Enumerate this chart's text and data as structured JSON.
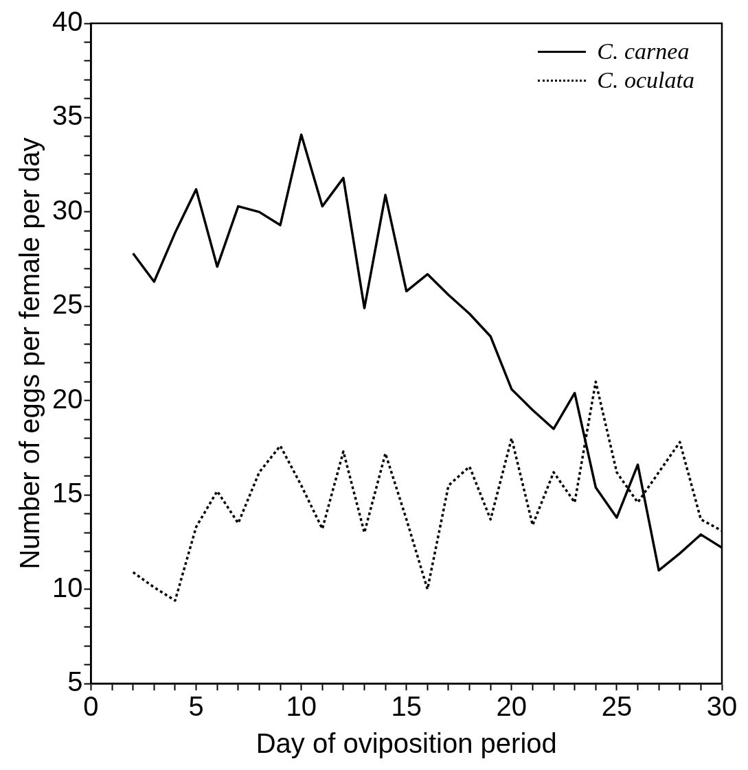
{
  "chart_data": {
    "type": "line",
    "xlabel": "Day of oviposition period",
    "ylabel": "Number of eggs per female per day",
    "x": [
      2,
      3,
      4,
      5,
      6,
      7,
      8,
      9,
      10,
      11,
      12,
      13,
      14,
      15,
      16,
      17,
      18,
      19,
      20,
      21,
      22,
      23,
      24,
      25,
      26,
      27,
      28,
      29,
      30
    ],
    "series": [
      {
        "name": "C. carnea",
        "color": "#000000",
        "line_style": "solid",
        "values": [
          27.8,
          26.3,
          28.9,
          31.2,
          27.1,
          30.3,
          30.0,
          29.3,
          34.1,
          30.3,
          31.8,
          24.9,
          30.9,
          25.8,
          26.7,
          25.6,
          24.6,
          23.4,
          20.6,
          19.5,
          18.5,
          20.4,
          15.4,
          13.8,
          16.6,
          11.0,
          11.9,
          12.9,
          12.2
        ]
      },
      {
        "name": "C. oculata",
        "color": "#000000",
        "line_style": "dotted",
        "values": [
          10.9,
          10.1,
          9.4,
          13.3,
          15.2,
          13.5,
          16.2,
          17.6,
          15.5,
          13.2,
          17.3,
          13.0,
          17.2,
          13.7,
          10.0,
          15.5,
          16.5,
          13.7,
          18.0,
          13.4,
          16.2,
          14.6,
          21.0,
          16.2,
          14.6,
          16.2,
          17.8,
          13.7,
          13.1
        ]
      }
    ],
    "xlim": [
      0,
      30
    ],
    "xticks": [
      0,
      {
        "value": 1,
        "label": null
      },
      {
        "value": 2,
        "label": null
      },
      {
        "value": 3,
        "label": null
      },
      {
        "value": 4,
        "label": null
      },
      5,
      {
        "value": 6,
        "label": null
      },
      {
        "value": 7,
        "label": null
      },
      {
        "value": 8,
        "label": null
      },
      {
        "value": 9,
        "label": null
      },
      10,
      {
        "value": 11,
        "label": null
      },
      {
        "value": 12,
        "label": null
      },
      {
        "value": 13,
        "label": null
      },
      {
        "value": 14,
        "label": null
      },
      15,
      {
        "value": 16,
        "label": null
      },
      {
        "value": 17,
        "label": null
      },
      {
        "value": 18,
        "label": null
      },
      {
        "value": 19,
        "label": null
      },
      20,
      {
        "value": 21,
        "label": null
      },
      {
        "value": 22,
        "label": null
      },
      {
        "value": 23,
        "label": null
      },
      {
        "value": 24,
        "label": null
      },
      25,
      {
        "value": 26,
        "label": null
      },
      {
        "value": 27,
        "label": null
      },
      {
        "value": 28,
        "label": null
      },
      {
        "value": 29,
        "label": null
      },
      30
    ],
    "ylim": [
      5,
      40
    ],
    "yticks": [
      5,
      {
        "value": 6,
        "label": null
      },
      {
        "value": 7,
        "label": null
      },
      {
        "value": 8,
        "label": null
      },
      {
        "value": 9,
        "label": null
      },
      10,
      {
        "value": 11,
        "label": null
      },
      {
        "value": 12,
        "label": null
      },
      {
        "value": 13,
        "label": null
      },
      {
        "value": 14,
        "label": null
      },
      15,
      {
        "value": 16,
        "label": null
      },
      {
        "value": 17,
        "label": null
      },
      {
        "value": 18,
        "label": null
      },
      {
        "value": 19,
        "label": null
      },
      20,
      {
        "value": 21,
        "label": null
      },
      {
        "value": 22,
        "label": null
      },
      {
        "value": 23,
        "label": null
      },
      {
        "value": 24,
        "label": null
      },
      25,
      {
        "value": 26,
        "label": null
      },
      {
        "value": 27,
        "label": null
      },
      {
        "value": 28,
        "label": null
      },
      {
        "value": 29,
        "label": null
      },
      30,
      {
        "value": 31,
        "label": null
      },
      {
        "value": 32,
        "label": null
      },
      {
        "value": 33,
        "label": null
      },
      {
        "value": 34,
        "label": null
      },
      35,
      {
        "value": 36,
        "label": null
      },
      {
        "value": 37,
        "label": null
      },
      {
        "value": 38,
        "label": null
      },
      {
        "value": 39,
        "label": null
      },
      40
    ],
    "grid": false,
    "legend": "top right",
    "marker": "none"
  }
}
